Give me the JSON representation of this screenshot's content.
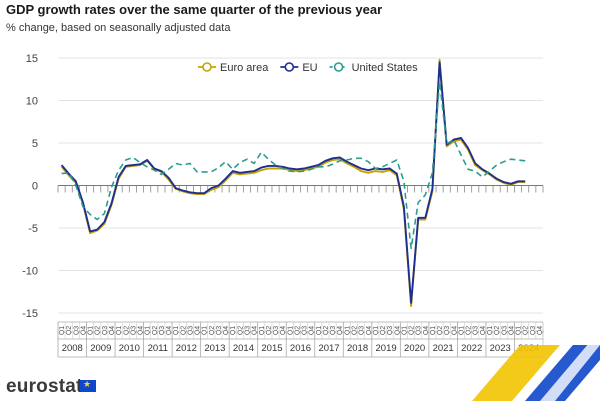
{
  "title": "GDP growth rates over the same quarter of the previous year",
  "subtitle": "% change, based on seasonally adjusted data",
  "brand": "eurostat",
  "chart_data": {
    "type": "line",
    "quarters_per_year": 4,
    "years": [
      "2008",
      "2009",
      "2010",
      "2011",
      "2012",
      "2013",
      "2014",
      "2015",
      "2016",
      "2017",
      "2018",
      "2019",
      "2020",
      "2021",
      "2022",
      "2023",
      "2024"
    ],
    "quarter_labels": [
      "Q1",
      "Q2",
      "Q3",
      "Q4"
    ],
    "ylim": [
      -15,
      15
    ],
    "yticks": [
      -15,
      -10,
      -5,
      0,
      5,
      10,
      15
    ],
    "grid": true,
    "legend_position": "top-center",
    "series": [
      {
        "name": "Euro area",
        "color": "#c8a200",
        "dash": false,
        "values": [
          2.2,
          1.2,
          0.3,
          -2.2,
          -5.6,
          -5.3,
          -4.5,
          -2.3,
          0.8,
          2.2,
          2.3,
          2.4,
          2.9,
          1.9,
          1.6,
          0.7,
          -0.4,
          -0.7,
          -0.9,
          -1.0,
          -1.0,
          -0.5,
          -0.2,
          0.6,
          1.5,
          1.3,
          1.4,
          1.5,
          1.8,
          2.0,
          2.0,
          2.0,
          1.8,
          1.7,
          1.8,
          2.0,
          2.2,
          2.7,
          3.0,
          3.1,
          2.6,
          2.2,
          1.7,
          1.5,
          1.7,
          1.6,
          1.8,
          1.2,
          -2.8,
          -14.2,
          -4.0,
          -4.0,
          -0.7,
          14.8,
          4.6,
          5.2,
          5.4,
          4.2,
          2.4,
          1.8,
          1.3,
          0.7,
          0.3,
          0.1,
          0.4,
          0.4
        ]
      },
      {
        "name": "EU",
        "color": "#1d2f8f",
        "dash": false,
        "values": [
          2.4,
          1.4,
          0.5,
          -2.0,
          -5.4,
          -5.2,
          -4.3,
          -2.1,
          1.0,
          2.3,
          2.4,
          2.5,
          3.0,
          2.0,
          1.7,
          0.9,
          -0.3,
          -0.6,
          -0.8,
          -0.9,
          -0.9,
          -0.3,
          0.0,
          0.8,
          1.7,
          1.5,
          1.6,
          1.7,
          2.1,
          2.3,
          2.3,
          2.2,
          2.0,
          1.9,
          2.0,
          2.2,
          2.4,
          2.9,
          3.2,
          3.3,
          2.8,
          2.4,
          2.0,
          1.8,
          2.0,
          1.9,
          2.0,
          1.4,
          -2.5,
          -13.8,
          -3.8,
          -3.8,
          -0.4,
          14.5,
          4.8,
          5.4,
          5.6,
          4.4,
          2.6,
          1.9,
          1.4,
          0.8,
          0.4,
          0.2,
          0.5,
          0.5
        ]
      },
      {
        "name": "United States",
        "color": "#2a9d8f",
        "dash": true,
        "values": [
          1.4,
          1.5,
          0.0,
          -2.5,
          -3.4,
          -4.0,
          -3.3,
          -0.2,
          1.8,
          3.0,
          3.3,
          2.7,
          2.2,
          1.8,
          1.3,
          1.9,
          2.6,
          2.4,
          2.6,
          1.6,
          1.6,
          1.6,
          2.1,
          2.8,
          1.9,
          2.7,
          3.1,
          2.6,
          3.9,
          3.1,
          2.4,
          2.0,
          1.7,
          1.6,
          1.7,
          1.9,
          2.2,
          2.2,
          2.5,
          2.9,
          3.0,
          3.2,
          3.2,
          2.8,
          2.0,
          2.2,
          2.6,
          3.0,
          0.5,
          -7.4,
          -2.0,
          -1.1,
          1.5,
          12.2,
          4.9,
          5.4,
          3.6,
          1.9,
          1.7,
          1.0,
          1.7,
          2.4,
          2.8,
          3.1,
          3.0,
          2.9
        ]
      }
    ]
  }
}
